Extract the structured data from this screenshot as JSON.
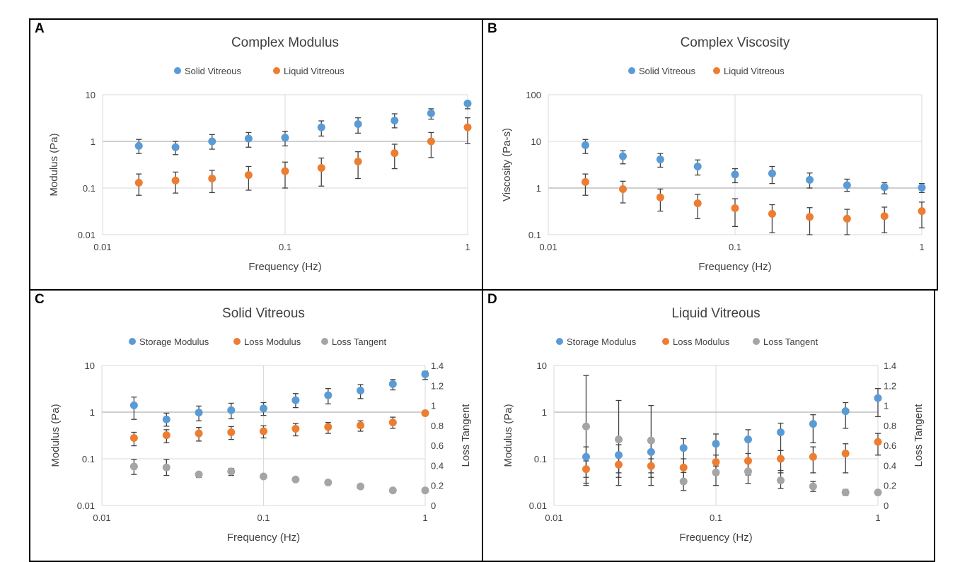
{
  "chart_data": [
    {
      "panel": "A",
      "type": "scatter",
      "title": "Complex Modulus",
      "xlabel": "Frequency (Hz)",
      "ylabel": "Modulus (Pa)",
      "xscale": "log",
      "yscale": "log",
      "xlim": [
        0.01,
        1
      ],
      "ylim": [
        0.01,
        10
      ],
      "x_ticks": [
        "0.01",
        "0.1",
        "1"
      ],
      "y_ticks": [
        "0.01",
        "0.1",
        "1",
        "10"
      ],
      "grid": "major, at decades",
      "legend_position": "top",
      "x": [
        0.0158,
        0.0251,
        0.0398,
        0.0631,
        0.1,
        0.158,
        0.251,
        0.398,
        0.631,
        1.0
      ],
      "series": [
        {
          "name": "Solid Vitreous",
          "color": "#5B9BD5",
          "axis": "left",
          "values": [
            0.8,
            0.75,
            1.0,
            1.15,
            1.2,
            2.0,
            2.35,
            2.8,
            4.0,
            6.5
          ],
          "err_low": [
            0.55,
            0.52,
            0.68,
            0.75,
            0.8,
            1.3,
            1.5,
            1.95,
            3.0,
            5.0
          ],
          "err_high": [
            1.1,
            1.0,
            1.4,
            1.55,
            1.65,
            2.75,
            3.2,
            3.9,
            5.0,
            7.0
          ]
        },
        {
          "name": "Liquid Vitreous",
          "color": "#ED7D31",
          "axis": "left",
          "values": [
            0.13,
            0.145,
            0.16,
            0.19,
            0.23,
            0.27,
            0.37,
            0.56,
            1.0,
            2.0
          ],
          "err_low": [
            0.07,
            0.078,
            0.08,
            0.09,
            0.1,
            0.11,
            0.16,
            0.26,
            0.45,
            0.9
          ],
          "err_high": [
            0.2,
            0.22,
            0.24,
            0.29,
            0.36,
            0.44,
            0.6,
            0.87,
            1.55,
            3.2
          ]
        }
      ]
    },
    {
      "panel": "B",
      "type": "scatter",
      "title": "Complex Viscosity",
      "xlabel": "Frequency (Hz)",
      "ylabel": "Viscosity (Pa-s)",
      "xscale": "log",
      "yscale": "log",
      "xlim": [
        0.01,
        1
      ],
      "ylim": [
        0.1,
        100
      ],
      "x_ticks": [
        "0.01",
        "0.1",
        "1"
      ],
      "y_ticks": [
        "0.1",
        "1",
        "10",
        "100"
      ],
      "grid": "major, at decades",
      "legend_position": "top",
      "x": [
        0.0158,
        0.0251,
        0.0398,
        0.0631,
        0.1,
        0.158,
        0.251,
        0.398,
        0.631,
        1.0
      ],
      "series": [
        {
          "name": "Solid Vitreous",
          "color": "#5B9BD5",
          "axis": "left",
          "values": [
            8.3,
            4.8,
            4.1,
            2.9,
            1.95,
            2.05,
            1.5,
            1.15,
            1.05,
            1.02
          ],
          "err_low": [
            5.5,
            3.3,
            2.8,
            1.9,
            1.3,
            1.25,
            1.0,
            0.85,
            0.75,
            0.8
          ],
          "err_high": [
            11.0,
            6.3,
            5.5,
            4.0,
            2.6,
            2.9,
            2.1,
            1.55,
            1.3,
            1.25
          ]
        },
        {
          "name": "Liquid Vitreous",
          "color": "#ED7D31",
          "axis": "left",
          "values": [
            1.35,
            0.95,
            0.63,
            0.47,
            0.37,
            0.28,
            0.24,
            0.22,
            0.25,
            0.32
          ],
          "err_low": [
            0.7,
            0.48,
            0.32,
            0.22,
            0.15,
            0.11,
            0.1,
            0.1,
            0.11,
            0.14
          ],
          "err_high": [
            2.0,
            1.4,
            0.95,
            0.73,
            0.59,
            0.44,
            0.38,
            0.35,
            0.39,
            0.5
          ]
        }
      ]
    },
    {
      "panel": "C",
      "type": "scatter",
      "title": "Solid Vitreous",
      "xlabel": "Frequency (Hz)",
      "ylabel": "Modulus (Pa)",
      "y2label": "Loss Tangent",
      "xscale": "log",
      "yscale": "log",
      "xlim": [
        0.01,
        1
      ],
      "ylim": [
        0.01,
        10
      ],
      "y2lim": [
        0,
        1.4
      ],
      "x_ticks": [
        "0.01",
        "0.1",
        "1"
      ],
      "y_ticks": [
        "0.01",
        "0.1",
        "1",
        "10"
      ],
      "y2_ticks": [
        "0",
        "0.2",
        "0.4",
        "0.6",
        "0.8",
        "1",
        "1.2",
        "1.4"
      ],
      "grid": "major, at decades",
      "legend_position": "top",
      "x": [
        0.0158,
        0.0251,
        0.0398,
        0.0631,
        0.1,
        0.158,
        0.251,
        0.398,
        0.631,
        1.0
      ],
      "series": [
        {
          "name": "Storage Modulus",
          "color": "#5B9BD5",
          "axis": "left",
          "values": [
            1.4,
            0.7,
            0.98,
            1.1,
            1.2,
            1.8,
            2.3,
            2.9,
            4.0,
            6.5
          ],
          "err_low": [
            0.7,
            0.5,
            0.65,
            0.72,
            0.85,
            1.25,
            1.5,
            1.95,
            3.0,
            5.0
          ],
          "err_high": [
            2.1,
            0.95,
            1.35,
            1.55,
            1.6,
            2.5,
            3.2,
            3.9,
            5.0,
            7.5
          ]
        },
        {
          "name": "Loss Modulus",
          "color": "#ED7D31",
          "axis": "left",
          "values": [
            0.28,
            0.32,
            0.35,
            0.37,
            0.39,
            0.44,
            0.48,
            0.52,
            0.6,
            0.95
          ],
          "err_low": [
            0.19,
            0.22,
            0.24,
            0.26,
            0.28,
            0.31,
            0.35,
            0.39,
            0.45,
            0.9
          ],
          "err_high": [
            0.37,
            0.42,
            0.47,
            0.49,
            0.51,
            0.57,
            0.6,
            0.65,
            0.78,
            1.0
          ]
        },
        {
          "name": "Loss Tangent",
          "color": "#A5A5A5",
          "axis": "right",
          "values": [
            0.39,
            0.38,
            0.31,
            0.34,
            0.29,
            0.26,
            0.23,
            0.19,
            0.15,
            0.15
          ],
          "err_low": [
            0.31,
            0.3,
            0.28,
            0.3,
            0.27,
            0.24,
            0.22,
            0.18,
            0.14,
            0.13
          ],
          "err_high": [
            0.46,
            0.46,
            0.33,
            0.37,
            0.3,
            0.28,
            0.24,
            0.2,
            0.16,
            0.17
          ]
        }
      ]
    },
    {
      "panel": "D",
      "type": "scatter",
      "title": "Liquid Vitreous",
      "xlabel": "Frequency (Hz)",
      "ylabel": "Modulus (Pa)",
      "y2label": "Loss Tangent",
      "xscale": "log",
      "yscale": "log",
      "xlim": [
        0.01,
        1
      ],
      "ylim": [
        0.01,
        10
      ],
      "y2lim": [
        0,
        1.4
      ],
      "x_ticks": [
        "0.01",
        "0.1",
        "1"
      ],
      "y_ticks": [
        "0.01",
        "0.1",
        "1",
        "10"
      ],
      "y2_ticks": [
        "0",
        "0.2",
        "0.4",
        "0.6",
        "0.8",
        "1",
        "1.2",
        "1.4"
      ],
      "grid": "major, at decades",
      "legend_position": "top",
      "x": [
        0.0158,
        0.0251,
        0.0398,
        0.0631,
        0.1,
        0.158,
        0.251,
        0.398,
        0.631,
        1.0
      ],
      "series": [
        {
          "name": "Storage Modulus",
          "color": "#5B9BD5",
          "axis": "left",
          "values": [
            0.11,
            0.12,
            0.14,
            0.17,
            0.21,
            0.26,
            0.37,
            0.56,
            1.05,
            2.0
          ],
          "err_low": [
            0.04,
            0.05,
            0.05,
            0.06,
            0.07,
            0.09,
            0.15,
            0.22,
            0.45,
            0.8
          ],
          "err_high": [
            0.18,
            0.2,
            0.22,
            0.27,
            0.34,
            0.42,
            0.58,
            0.88,
            1.6,
            3.2
          ]
        },
        {
          "name": "Loss Modulus",
          "color": "#ED7D31",
          "axis": "left",
          "values": [
            0.06,
            0.075,
            0.07,
            0.065,
            0.085,
            0.09,
            0.1,
            0.11,
            0.13,
            0.23
          ],
          "err_low": [
            0.03,
            0.04,
            0.04,
            0.03,
            0.045,
            0.045,
            0.05,
            0.05,
            0.05,
            0.12
          ],
          "err_high": [
            0.09,
            0.11,
            0.1,
            0.1,
            0.12,
            0.13,
            0.15,
            0.18,
            0.21,
            0.35
          ]
        },
        {
          "name": "Loss Tangent",
          "color": "#A5A5A5",
          "axis": "right",
          "values": [
            0.79,
            0.66,
            0.65,
            0.24,
            0.33,
            0.34,
            0.25,
            0.19,
            0.13,
            0.13
          ],
          "err_low": [
            0.2,
            0.2,
            0.2,
            0.15,
            0.2,
            0.22,
            0.17,
            0.14,
            0.1,
            0.11
          ],
          "err_high": [
            1.3,
            1.05,
            1.0,
            0.33,
            0.45,
            0.46,
            0.35,
            0.24,
            0.16,
            0.15
          ]
        }
      ]
    }
  ]
}
